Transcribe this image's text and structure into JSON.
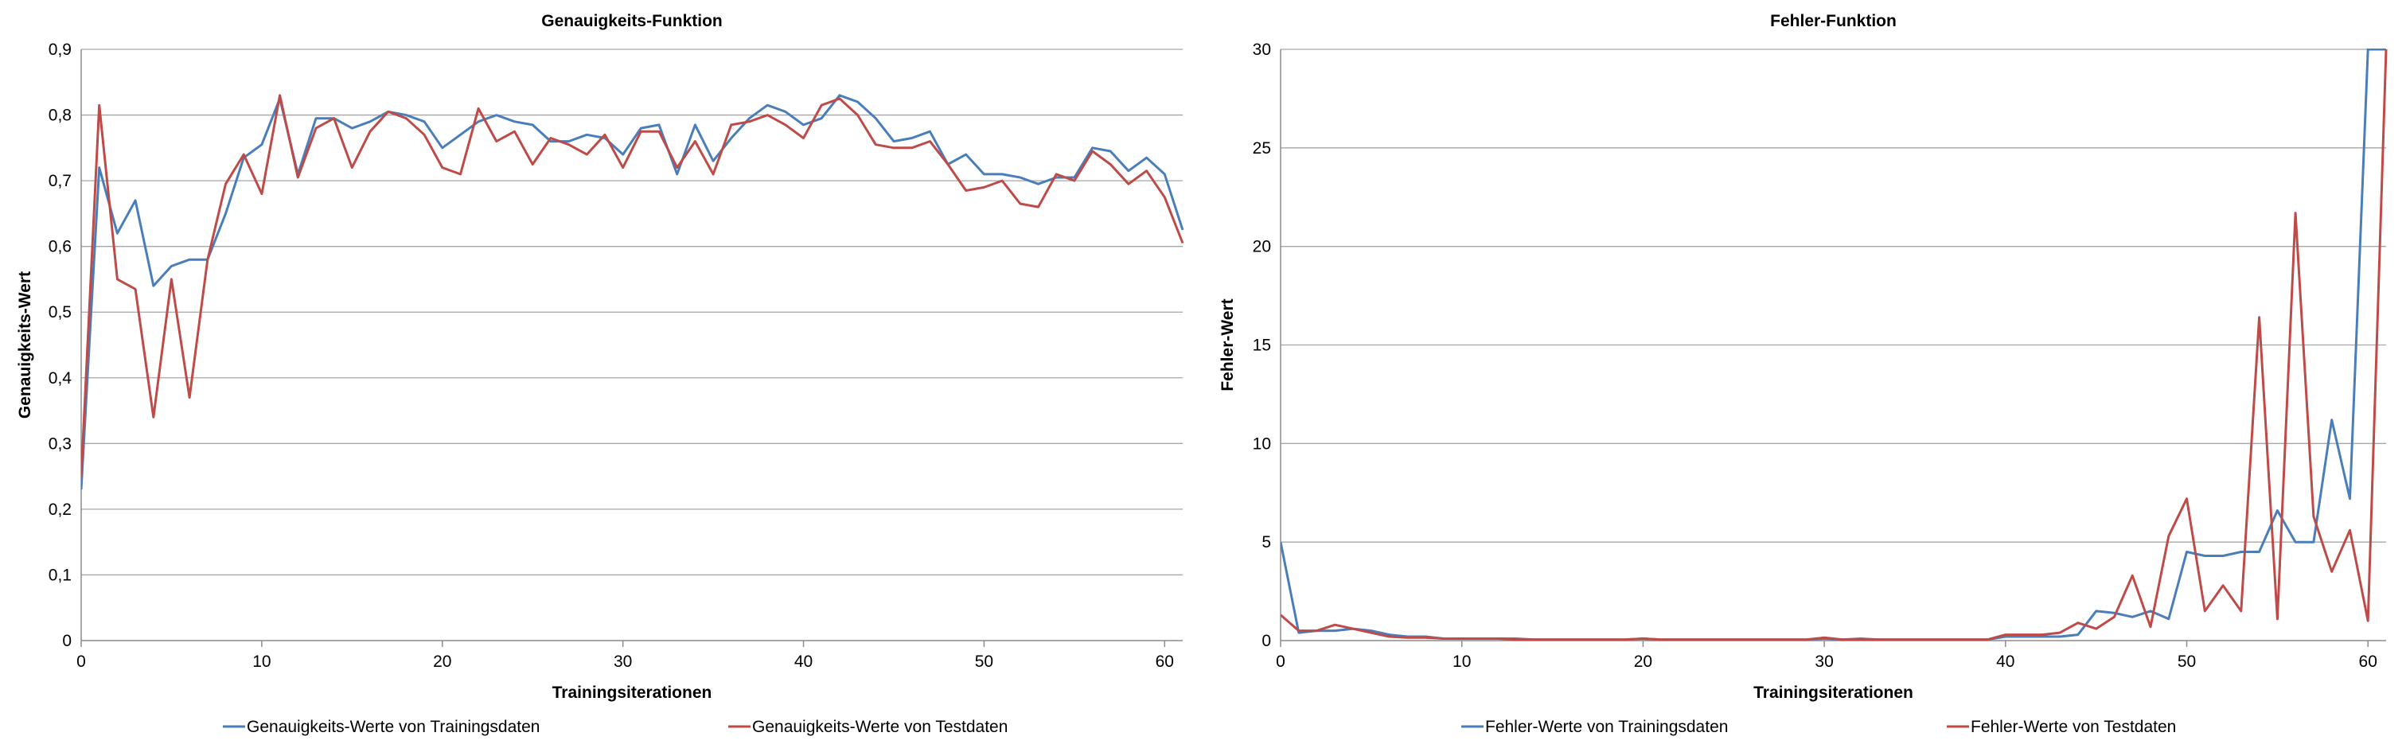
{
  "chart_data": [
    {
      "type": "line",
      "title": "Genauigkeits-Funktion",
      "xlabel": "Trainingsiterationen",
      "ylabel": "Genauigkeits-Wert",
      "xlim": [
        0,
        61
      ],
      "ylim": [
        0,
        0.9
      ],
      "xticks": [
        0,
        10,
        20,
        30,
        40,
        50,
        60
      ],
      "xtick_labels": [
        "0",
        "10",
        "20",
        "30",
        "40",
        "50",
        "60"
      ],
      "yticks": [
        0,
        0.1,
        0.2,
        0.3,
        0.4,
        0.5,
        0.6,
        0.7,
        0.8,
        0.9
      ],
      "ytick_labels": [
        "0",
        "0,1",
        "0,2",
        "0,3",
        "0,4",
        "0,5",
        "0,6",
        "0,7",
        "0,8",
        "0,9"
      ],
      "grid": "horizontal",
      "legend": "bottom",
      "series": [
        {
          "name": "Genauigkeits-Werte von Trainingsdaten",
          "color": "#4a7ebb",
          "values": [
            0.23,
            0.72,
            0.62,
            0.67,
            0.54,
            0.57,
            0.58,
            0.58,
            0.65,
            0.735,
            0.755,
            0.825,
            0.71,
            0.795,
            0.795,
            0.78,
            0.79,
            0.805,
            0.8,
            0.79,
            0.75,
            0.77,
            0.79,
            0.8,
            0.79,
            0.785,
            0.76,
            0.76,
            0.77,
            0.765,
            0.74,
            0.78,
            0.785,
            0.71,
            0.785,
            0.73,
            0.765,
            0.795,
            0.815,
            0.805,
            0.785,
            0.795,
            0.83,
            0.82,
            0.795,
            0.76,
            0.765,
            0.775,
            0.725,
            0.74,
            0.71,
            0.71,
            0.705,
            0.695,
            0.705,
            0.705,
            0.75,
            0.745,
            0.715,
            0.735,
            0.71,
            0.625
          ]
        },
        {
          "name": "Genauigkeits-Werte von Testdaten",
          "color": "#be4b48",
          "values": [
            0.25,
            0.815,
            0.55,
            0.535,
            0.34,
            0.55,
            0.37,
            0.58,
            0.695,
            0.74,
            0.68,
            0.83,
            0.705,
            0.78,
            0.795,
            0.72,
            0.775,
            0.805,
            0.795,
            0.77,
            0.72,
            0.71,
            0.81,
            0.76,
            0.775,
            0.725,
            0.765,
            0.755,
            0.74,
            0.77,
            0.72,
            0.775,
            0.775,
            0.72,
            0.76,
            0.71,
            0.785,
            0.79,
            0.8,
            0.785,
            0.765,
            0.815,
            0.825,
            0.8,
            0.755,
            0.75,
            0.75,
            0.76,
            0.725,
            0.685,
            0.69,
            0.7,
            0.665,
            0.66,
            0.71,
            0.7,
            0.745,
            0.725,
            0.695,
            0.715,
            0.675,
            0.605
          ]
        }
      ]
    },
    {
      "type": "line",
      "title": "Fehler-Funktion",
      "xlabel": "Trainingsiterationen",
      "ylabel": "Fehler-Wert",
      "xlim": [
        0,
        61
      ],
      "ylim": [
        0,
        30
      ],
      "xticks": [
        0,
        10,
        20,
        30,
        40,
        50,
        60
      ],
      "xtick_labels": [
        "0",
        "10",
        "20",
        "30",
        "40",
        "50",
        "60"
      ],
      "yticks": [
        0,
        5,
        10,
        15,
        20,
        25,
        30
      ],
      "ytick_labels": [
        "0",
        "5",
        "10",
        "15",
        "20",
        "25",
        "30"
      ],
      "grid": "horizontal",
      "legend": "bottom",
      "series": [
        {
          "name": "Fehler-Werte von Trainingsdaten",
          "color": "#4a7ebb",
          "values": [
            5.0,
            0.4,
            0.5,
            0.5,
            0.6,
            0.5,
            0.3,
            0.2,
            0.2,
            0.1,
            0.1,
            0.1,
            0.1,
            0.1,
            0.05,
            0.05,
            0.05,
            0.05,
            0.05,
            0.05,
            0.1,
            0.05,
            0.05,
            0.05,
            0.05,
            0.05,
            0.05,
            0.05,
            0.05,
            0.05,
            0.1,
            0.05,
            0.1,
            0.05,
            0.05,
            0.05,
            0.05,
            0.05,
            0.05,
            0.05,
            0.2,
            0.2,
            0.2,
            0.2,
            0.3,
            1.5,
            1.4,
            1.2,
            1.5,
            1.1,
            4.5,
            4.3,
            4.3,
            4.5,
            4.5,
            6.6,
            5.0,
            5.0,
            11.2,
            7.2,
            30.0,
            30.0
          ]
        },
        {
          "name": "Fehler-Werte von Testdaten",
          "color": "#be4b48",
          "values": [
            1.3,
            0.5,
            0.5,
            0.8,
            0.6,
            0.4,
            0.2,
            0.15,
            0.15,
            0.1,
            0.1,
            0.1,
            0.1,
            0.05,
            0.05,
            0.05,
            0.05,
            0.05,
            0.05,
            0.05,
            0.1,
            0.05,
            0.05,
            0.05,
            0.05,
            0.05,
            0.05,
            0.05,
            0.05,
            0.05,
            0.15,
            0.05,
            0.05,
            0.05,
            0.05,
            0.05,
            0.05,
            0.05,
            0.05,
            0.05,
            0.3,
            0.3,
            0.3,
            0.4,
            0.9,
            0.6,
            1.2,
            3.3,
            0.7,
            5.3,
            7.2,
            1.5,
            2.8,
            1.5,
            16.4,
            1.1,
            21.7,
            6.3,
            3.5,
            5.6,
            1.0,
            30.0
          ]
        }
      ]
    }
  ]
}
